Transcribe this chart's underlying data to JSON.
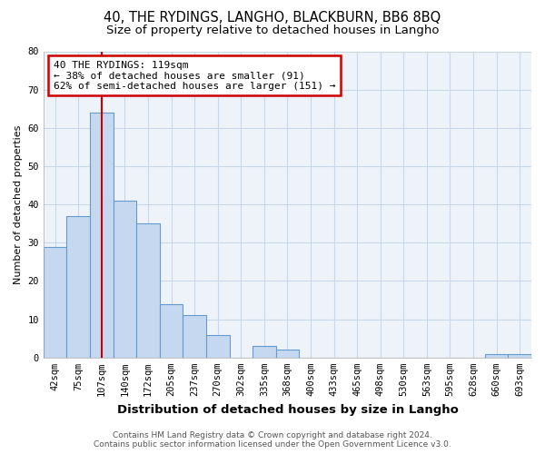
{
  "title": "40, THE RYDINGS, LANGHO, BLACKBURN, BB6 8BQ",
  "subtitle": "Size of property relative to detached houses in Langho",
  "xlabel": "Distribution of detached houses by size in Langho",
  "ylabel": "Number of detached properties",
  "bar_labels": [
    "42sqm",
    "75sqm",
    "107sqm",
    "140sqm",
    "172sqm",
    "205sqm",
    "237sqm",
    "270sqm",
    "302sqm",
    "335sqm",
    "368sqm",
    "400sqm",
    "433sqm",
    "465sqm",
    "498sqm",
    "530sqm",
    "563sqm",
    "595sqm",
    "628sqm",
    "660sqm",
    "693sqm"
  ],
  "bar_values": [
    29,
    37,
    64,
    41,
    35,
    14,
    11,
    6,
    0,
    3,
    2,
    0,
    0,
    0,
    0,
    0,
    0,
    0,
    0,
    1,
    1
  ],
  "bar_color": "#c5d8f0",
  "bar_edge_color": "#6699cc",
  "ylim": [
    0,
    80
  ],
  "yticks": [
    0,
    10,
    20,
    30,
    40,
    50,
    60,
    70,
    80
  ],
  "red_line_x": 2.0,
  "annotation_text": "40 THE RYDINGS: 119sqm\n← 38% of detached houses are smaller (91)\n62% of semi-detached houses are larger (151) →",
  "annotation_box_color": "#ffffff",
  "annotation_box_edge": "#cc0000",
  "red_line_color": "#cc0000",
  "footer_line1": "Contains HM Land Registry data © Crown copyright and database right 2024.",
  "footer_line2": "Contains public sector information licensed under the Open Government Licence v3.0.",
  "title_fontsize": 10.5,
  "subtitle_fontsize": 9.5,
  "xlabel_fontsize": 9.5,
  "ylabel_fontsize": 8,
  "tick_fontsize": 7.5,
  "footer_fontsize": 6.5,
  "annotation_fontsize": 8,
  "background_color": "#ffffff",
  "grid_color": "#c8d8e8",
  "plot_bg_color": "#eef3fa"
}
